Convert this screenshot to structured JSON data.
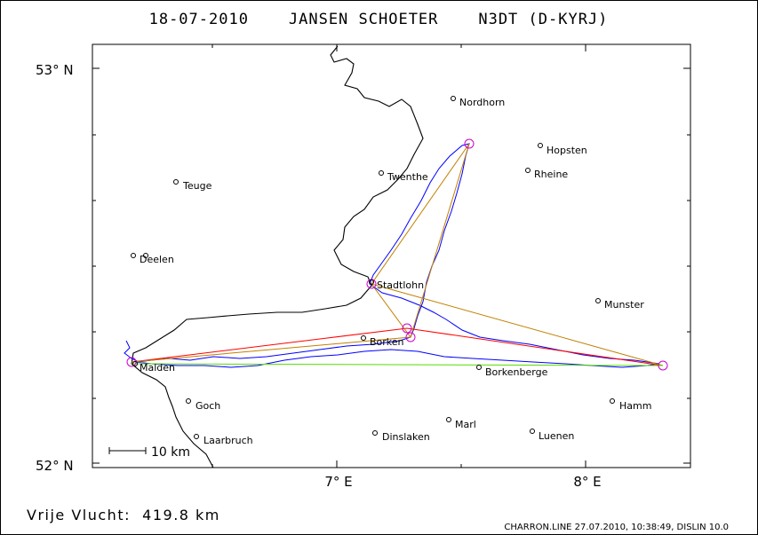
{
  "title": "18-07-2010    JANSEN SCHOETER    N3DT (D-KYRJ)",
  "lat_labels": [
    "53° N",
    "52° N"
  ],
  "lon_labels": [
    "7° E",
    "8° E"
  ],
  "scale_label": "10 km",
  "distance_label": "Vrije Vlucht:  419.8 km",
  "footer": "CHARRON.LINE 27.07.2010, 10:38:49, DISLIN 10.0",
  "colors": {
    "border": "#000000",
    "track": "#0000ff",
    "route_red": "#ff0000",
    "route_orange": "#c08000",
    "route_green": "#55dd00",
    "turnpoint": "#cc00cc"
  },
  "places": [
    {
      "name": "Nordhorn"
    },
    {
      "name": "Hopsten"
    },
    {
      "name": "Rheine"
    },
    {
      "name": "Twenthe"
    },
    {
      "name": "Teuge"
    },
    {
      "name": "Deelen"
    },
    {
      "name": "Stadtlohn"
    },
    {
      "name": "Munster"
    },
    {
      "name": "Borken"
    },
    {
      "name": "Malden"
    },
    {
      "name": "Borkenberge"
    },
    {
      "name": "Goch"
    },
    {
      "name": "Hamm"
    },
    {
      "name": "Marl"
    },
    {
      "name": "Dinslaken"
    },
    {
      "name": "Luenen"
    },
    {
      "name": "Laarbruch"
    }
  ]
}
